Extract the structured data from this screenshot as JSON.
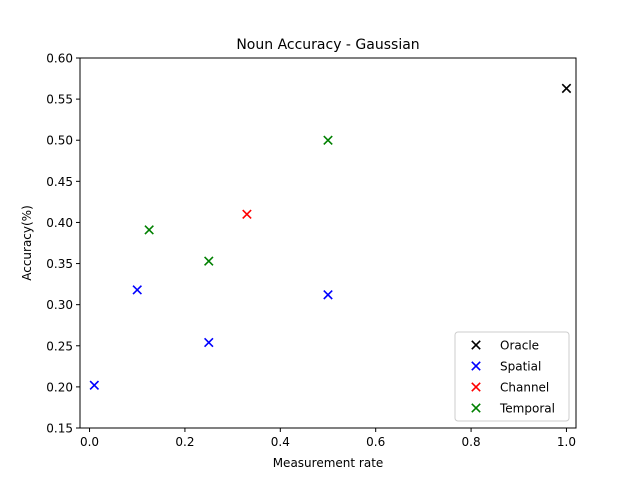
{
  "chart_data": {
    "type": "scatter",
    "title": "Noun Accuracy - Gaussian",
    "xlabel": "Measurement rate",
    "ylabel": "Accuracy(%)",
    "xlim": [
      -0.02,
      1.02
    ],
    "ylim": [
      0.15,
      0.6
    ],
    "xticks": [
      0.0,
      0.2,
      0.4,
      0.6,
      0.8,
      1.0
    ],
    "xtick_labels": [
      "0.0",
      "0.2",
      "0.4",
      "0.6",
      "0.8",
      "1.0"
    ],
    "yticks": [
      0.15,
      0.2,
      0.25,
      0.3,
      0.35,
      0.4,
      0.45,
      0.5,
      0.55,
      0.6
    ],
    "ytick_labels": [
      "0.15",
      "0.20",
      "0.25",
      "0.30",
      "0.35",
      "0.40",
      "0.45",
      "0.50",
      "0.55",
      "0.60"
    ],
    "grid": false,
    "legend_position": "bottom-right",
    "marker": "x",
    "series": [
      {
        "name": "Oracle",
        "color": "#000000",
        "points": [
          [
            1.0,
            0.563
          ]
        ]
      },
      {
        "name": "Spatial",
        "color": "#0000ff",
        "points": [
          [
            0.01,
            0.202
          ],
          [
            0.1,
            0.318
          ],
          [
            0.25,
            0.254
          ],
          [
            0.5,
            0.312
          ]
        ]
      },
      {
        "name": "Channel",
        "color": "#ff0000",
        "points": [
          [
            0.33,
            0.41
          ]
        ]
      },
      {
        "name": "Temporal",
        "color": "#008000",
        "points": [
          [
            0.125,
            0.391
          ],
          [
            0.25,
            0.353
          ],
          [
            0.5,
            0.5
          ]
        ]
      }
    ]
  }
}
